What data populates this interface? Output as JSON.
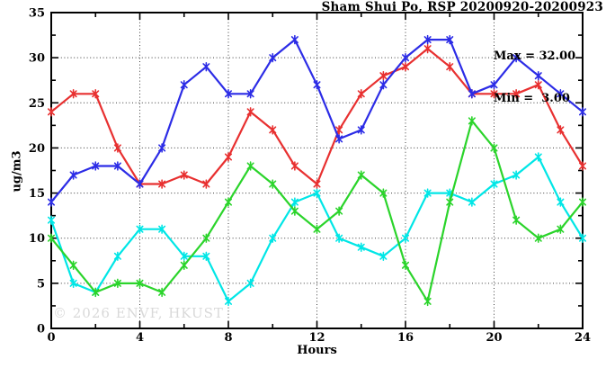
{
  "title": "Sham Shui Po, RSP 20200920-20200923",
  "annotation": {
    "max_label": "Max = 32.00",
    "min_label": "Min =  3.00"
  },
  "watermark": "© 2026 ENVF, HKUST",
  "chart_data": {
    "type": "line",
    "title": "Sham Shui Po, RSP 20200920-20200923",
    "xlabel": "Hours",
    "ylabel": "ug/m3",
    "xlim": [
      0,
      24
    ],
    "ylim": [
      0,
      35
    ],
    "x_major_ticks": [
      0,
      4,
      8,
      12,
      16,
      20,
      24
    ],
    "x_minor_step": 2,
    "y_major_ticks": [
      0,
      5,
      10,
      15,
      20,
      25,
      30,
      35
    ],
    "y_minor_step": 2.5,
    "grid": true,
    "legend": "none",
    "marker": "asterisk",
    "stats": {
      "max": 32.0,
      "min": 3.0
    },
    "x": [
      0,
      1,
      2,
      3,
      4,
      5,
      6,
      7,
      8,
      9,
      10,
      11,
      12,
      13,
      14,
      15,
      16,
      17,
      18,
      19,
      20,
      21,
      22,
      23,
      24
    ],
    "series": [
      {
        "name": "cyan-line",
        "color": "#00e6e6",
        "values": [
          12,
          5,
          4,
          8,
          11,
          11,
          8,
          8,
          3,
          5,
          10,
          14,
          15,
          10,
          9,
          8,
          10,
          15,
          15,
          14,
          16,
          17,
          19,
          14,
          10
        ]
      },
      {
        "name": "green-line",
        "color": "#2bd42b",
        "values": [
          10,
          7,
          4,
          5,
          5,
          4,
          7,
          10,
          14,
          18,
          16,
          13,
          11,
          13,
          17,
          15,
          7,
          3,
          14,
          23,
          20,
          12,
          10,
          11,
          14
        ]
      },
      {
        "name": "red-line",
        "color": "#e83030",
        "values": [
          24,
          26,
          26,
          20,
          16,
          16,
          17,
          16,
          19,
          24,
          22,
          18,
          16,
          22,
          26,
          28,
          29,
          31,
          29,
          26,
          26,
          26,
          27,
          22,
          18
        ]
      },
      {
        "name": "blue-line",
        "color": "#2c2ce6",
        "values": [
          14,
          17,
          18,
          18,
          16,
          20,
          27,
          29,
          26,
          26,
          30,
          32,
          27,
          21,
          22,
          27,
          30,
          32,
          32,
          26,
          27,
          30,
          28,
          26,
          24
        ]
      }
    ]
  }
}
